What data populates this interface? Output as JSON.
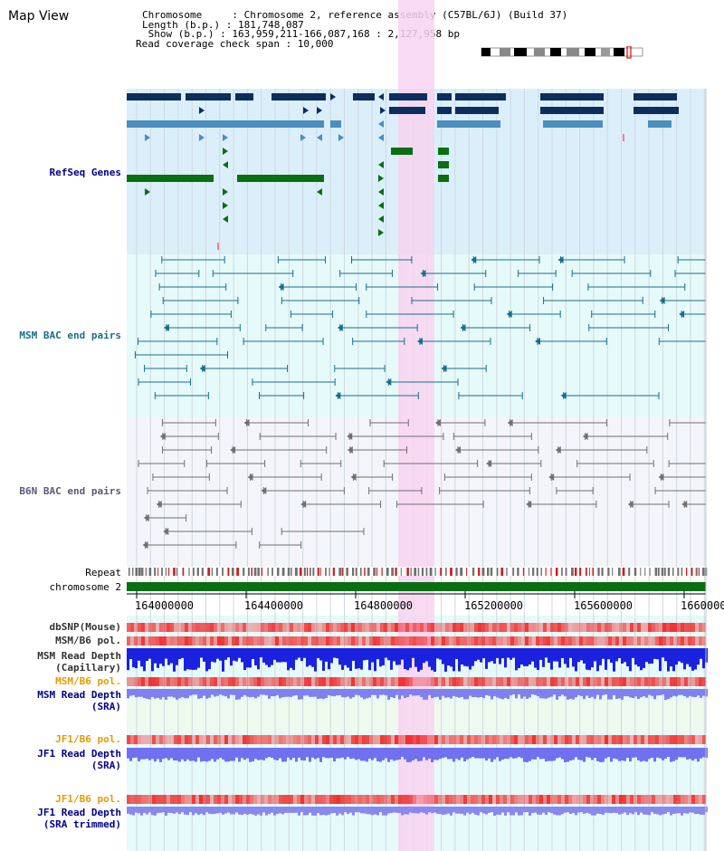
{
  "page": {
    "title": "Map View"
  },
  "info": {
    "chromosome_label": "Chromosome     : Chromosome 2, reference assembly (C57BL/6J) (Build 37)",
    "length_label": "Length (b.p.) : 181,748,087",
    "show_label": " Show (b.p.) : 163,959,211-166,087,168 : 2,127,958 bp",
    "coverage_label": "Read coverage check span : 10,000"
  },
  "tracks": {
    "refseq": "RefSeq Genes",
    "msm_bac": "MSM BAC end pairs",
    "b6n_bac": "B6N BAC end pairs",
    "repeat": "Repeat",
    "chromosome": "chromosome 2",
    "dbsnp": "dbSNP(Mouse)",
    "msm_pol": "MSM/B6 pol.",
    "msm_depth_cap": "MSM Read Depth\n(Capillary)",
    "msm_pol_2": "MSM/B6 pol.",
    "msm_depth_sra": "MSM Read Depth\n(SRA)",
    "jf1_pol": "JF1/B6 pol.",
    "jf1_depth": "JF1 Read Depth\n(SRA)",
    "jf1_pol_2": "JF1/B6 pol.",
    "jf1_depth_trim": "JF1 Read Depth\n(SRA trimmed)"
  },
  "axis": {
    "ticks": [
      "164000000",
      "164400000",
      "164800000",
      "165200000",
      "165600000",
      "1660000"
    ]
  },
  "colors": {
    "refseq_dark": "#0b2e5e",
    "refseq_mid": "#4a8fbf",
    "refseq_green": "#0a6e12",
    "msm_line": "#1a6e8a",
    "b6n_line": "#707070",
    "highlight": "#f7d3f0",
    "label_blue": "#00008b",
    "label_teal": "#1a6e8a",
    "label_gray": "#5a5a7a",
    "label_orange": "#e89a00",
    "chromosome_bar": "#0a6e12"
  }
}
